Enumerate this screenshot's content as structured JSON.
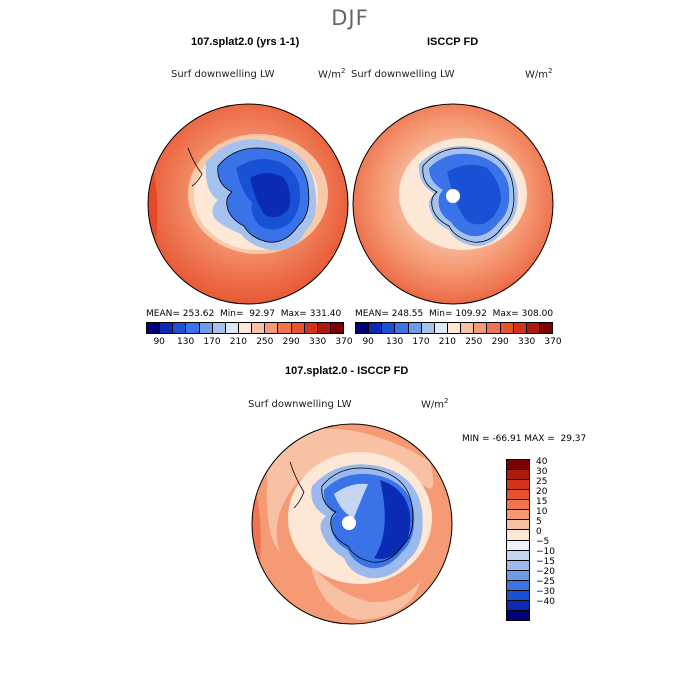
{
  "season": "DJF",
  "panels": {
    "model": {
      "title": "107.splat2.0 (yrs 1-1)",
      "variable": "Surf downwelling LW",
      "units_base": "W/m",
      "units_exp": "2",
      "mean": "MEAN= 253.62",
      "min": "Min=  92.97",
      "max": "Max= 331.40"
    },
    "obs": {
      "title": "ISCCP FD",
      "variable": "Surf downwelling LW",
      "units_base": "W/m",
      "units_exp": "2",
      "mean": "MEAN= 248.55",
      "min": "Min= 109.92",
      "max": "Max= 308.00"
    },
    "diff": {
      "title": "107.splat2.0 - ISCCP FD",
      "variable": "Surf downwelling LW",
      "units_base": "W/m",
      "units_exp": "2",
      "minmax": "MIN = -66.91 MAX =  29.37"
    }
  },
  "colorbar_abs": {
    "colors": [
      "#00007a",
      "#0b2bb4",
      "#1850d6",
      "#3a73e8",
      "#6e9be8",
      "#a5c2ef",
      "#dde7f7",
      "#fde7d6",
      "#f8c1a3",
      "#f59a74",
      "#ee7550",
      "#e6532f",
      "#d5341a",
      "#b01a0e",
      "#7f0000"
    ],
    "ticks": [
      "90",
      "130",
      "170",
      "210",
      "250",
      "290",
      "330",
      "370"
    ]
  },
  "colorbar_diff": {
    "colors": [
      "#7f0000",
      "#b01a0e",
      "#d5341a",
      "#e6532f",
      "#ee7550",
      "#f59a74",
      "#f8c1a3",
      "#fde7d6",
      "#eef2fa",
      "#c4d6f2",
      "#9bb9ec",
      "#6e9be8",
      "#3a73e8",
      "#1850d6",
      "#0b2bb4",
      "#00007a"
    ],
    "ticks": [
      "40",
      "30",
      "25",
      "20",
      "15",
      "10",
      "5",
      "0",
      "−5",
      "−10",
      "−15",
      "−20",
      "−25",
      "−30",
      "−40"
    ]
  }
}
